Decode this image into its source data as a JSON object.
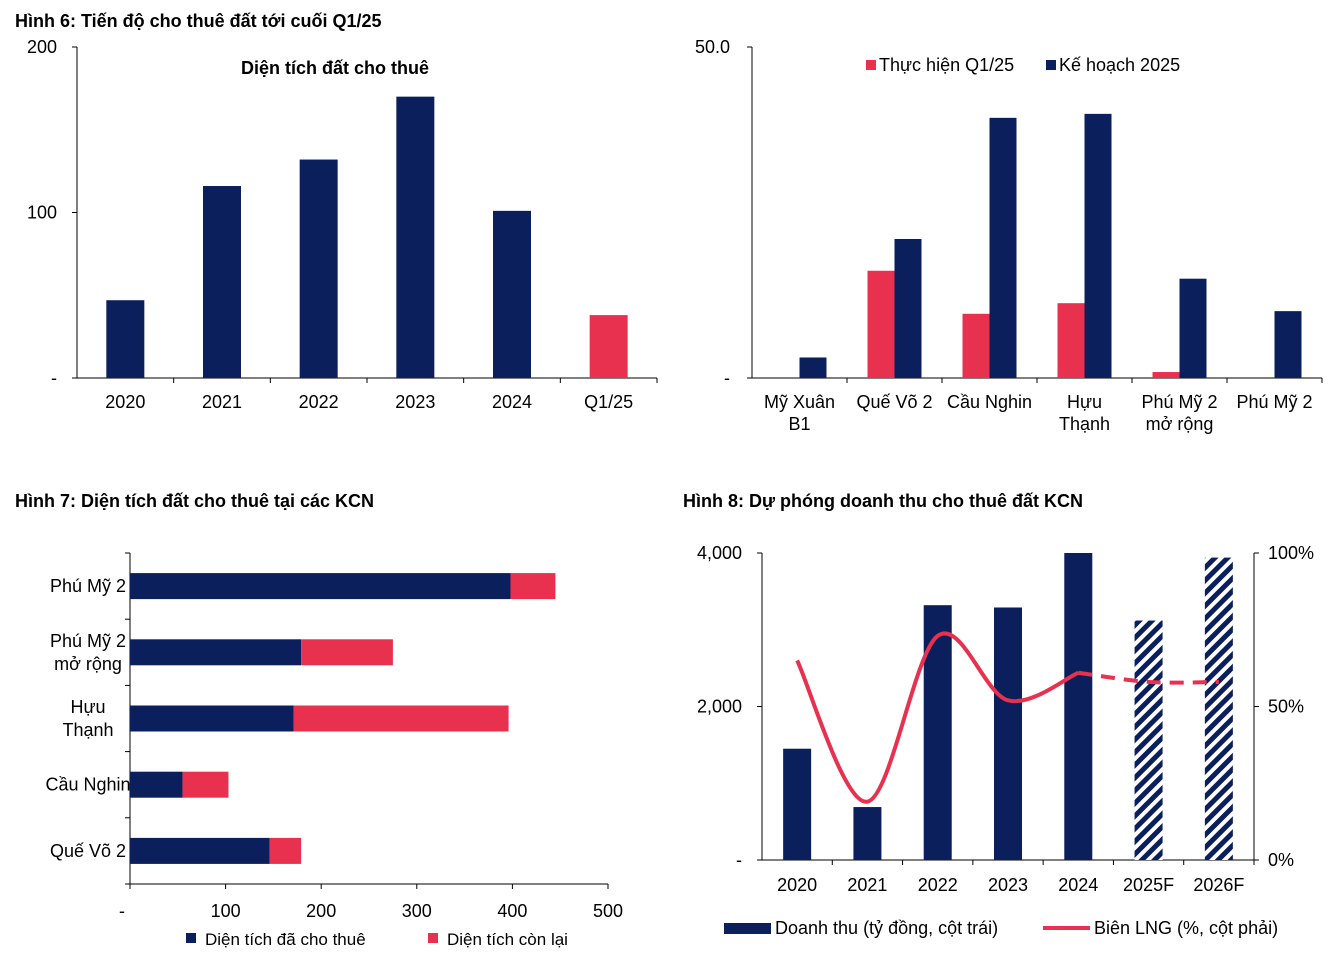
{
  "figures": {
    "fig6_title": "Hình 6: Tiến độ cho thuê đất tới cuối Q1/25",
    "fig7_title": "Hình 7: Diện tích đất cho thuê tại các KCN",
    "fig8_title": "Hình 8: Dự phóng doanh thu cho thuê đất KCN"
  },
  "colors": {
    "navy": "#0a1f5c",
    "red": "#e8304f"
  },
  "chart_data": [
    {
      "id": "fig6_left",
      "type": "bar",
      "title": "Diện tích đất cho thuê",
      "categories": [
        "2020",
        "2021",
        "2022",
        "2023",
        "2024",
        "Q1/25"
      ],
      "values": [
        47,
        116,
        132,
        170,
        101,
        38
      ],
      "bar_colors": [
        "navy",
        "navy",
        "navy",
        "navy",
        "navy",
        "red"
      ],
      "ylim": [
        0,
        200
      ],
      "yticks": [
        0,
        100,
        200
      ],
      "ytick_labels": [
        "-",
        "100",
        "200"
      ]
    },
    {
      "id": "fig6_right",
      "type": "bar",
      "categories": [
        [
          "Mỹ Xuân",
          "B1"
        ],
        [
          "Quế Võ 2"
        ],
        [
          "Cầu Nghin"
        ],
        [
          "Hựu",
          "Thạnh"
        ],
        [
          "Phú Mỹ 2",
          "mở rộng"
        ],
        [
          "Phú Mỹ 2"
        ]
      ],
      "series": [
        {
          "name": "Thực hiện Q1/25",
          "color": "red",
          "values": [
            0,
            16.2,
            9.7,
            11.3,
            0.9,
            0
          ]
        },
        {
          "name": "Kế hoạch 2025",
          "color": "navy",
          "values": [
            3.1,
            21,
            39.3,
            39.9,
            15,
            10.1
          ]
        }
      ],
      "ylim": [
        0,
        50
      ],
      "yticks": [
        0,
        50
      ],
      "ytick_labels": [
        "-",
        "50.0"
      ],
      "legend": "top"
    },
    {
      "id": "fig7",
      "type": "bar",
      "orientation": "horizontal",
      "stacked": true,
      "categories": [
        [
          "Phú Mỹ 2"
        ],
        [
          "Phú Mỹ 2",
          "mở rộng"
        ],
        [
          "Hựu",
          "Thạnh"
        ],
        [
          "Cầu Nghin"
        ],
        [
          "Quế Võ 2"
        ]
      ],
      "series": [
        {
          "name": "Diện tích đã cho thuê",
          "color": "navy",
          "values": [
            398,
            179,
            171,
            55,
            146
          ]
        },
        {
          "name": "Diện tích còn lại",
          "color": "red",
          "values": [
            47,
            96,
            225,
            48,
            33
          ]
        }
      ],
      "xlim": [
        0,
        500
      ],
      "xticks": [
        0,
        100,
        200,
        300,
        400,
        500
      ],
      "xtick_labels": [
        "-",
        "100",
        "200",
        "300",
        "400",
        "500"
      ],
      "legend": "bottom"
    },
    {
      "id": "fig8",
      "type": "bar",
      "categories": [
        "2020",
        "2021",
        "2022",
        "2023",
        "2024",
        "2025F",
        "2026F"
      ],
      "series": [
        {
          "name": "Doanh thu (tỷ đồng, cột trái)",
          "axis": "left",
          "color": "navy",
          "values": [
            1450,
            690,
            3320,
            3290,
            4000,
            3120,
            3940
          ],
          "hatched": [
            false,
            false,
            false,
            false,
            false,
            true,
            true
          ]
        },
        {
          "name": "Biên LNG (%, cột phải)",
          "axis": "right",
          "type": "line",
          "color": "red",
          "values": [
            65,
            19,
            73,
            52,
            61,
            58,
            58
          ],
          "dashed_from_index": 4
        }
      ],
      "ylim_left": [
        0,
        4000
      ],
      "yticks_left": [
        0,
        2000,
        4000
      ],
      "ytick_labels_left": [
        "-",
        "2,000",
        "4,000"
      ],
      "ylim_right": [
        0,
        100
      ],
      "yticks_right": [
        0,
        50,
        100
      ],
      "ytick_labels_right": [
        "0%",
        "50%",
        "100%"
      ],
      "legend": "bottom"
    }
  ]
}
